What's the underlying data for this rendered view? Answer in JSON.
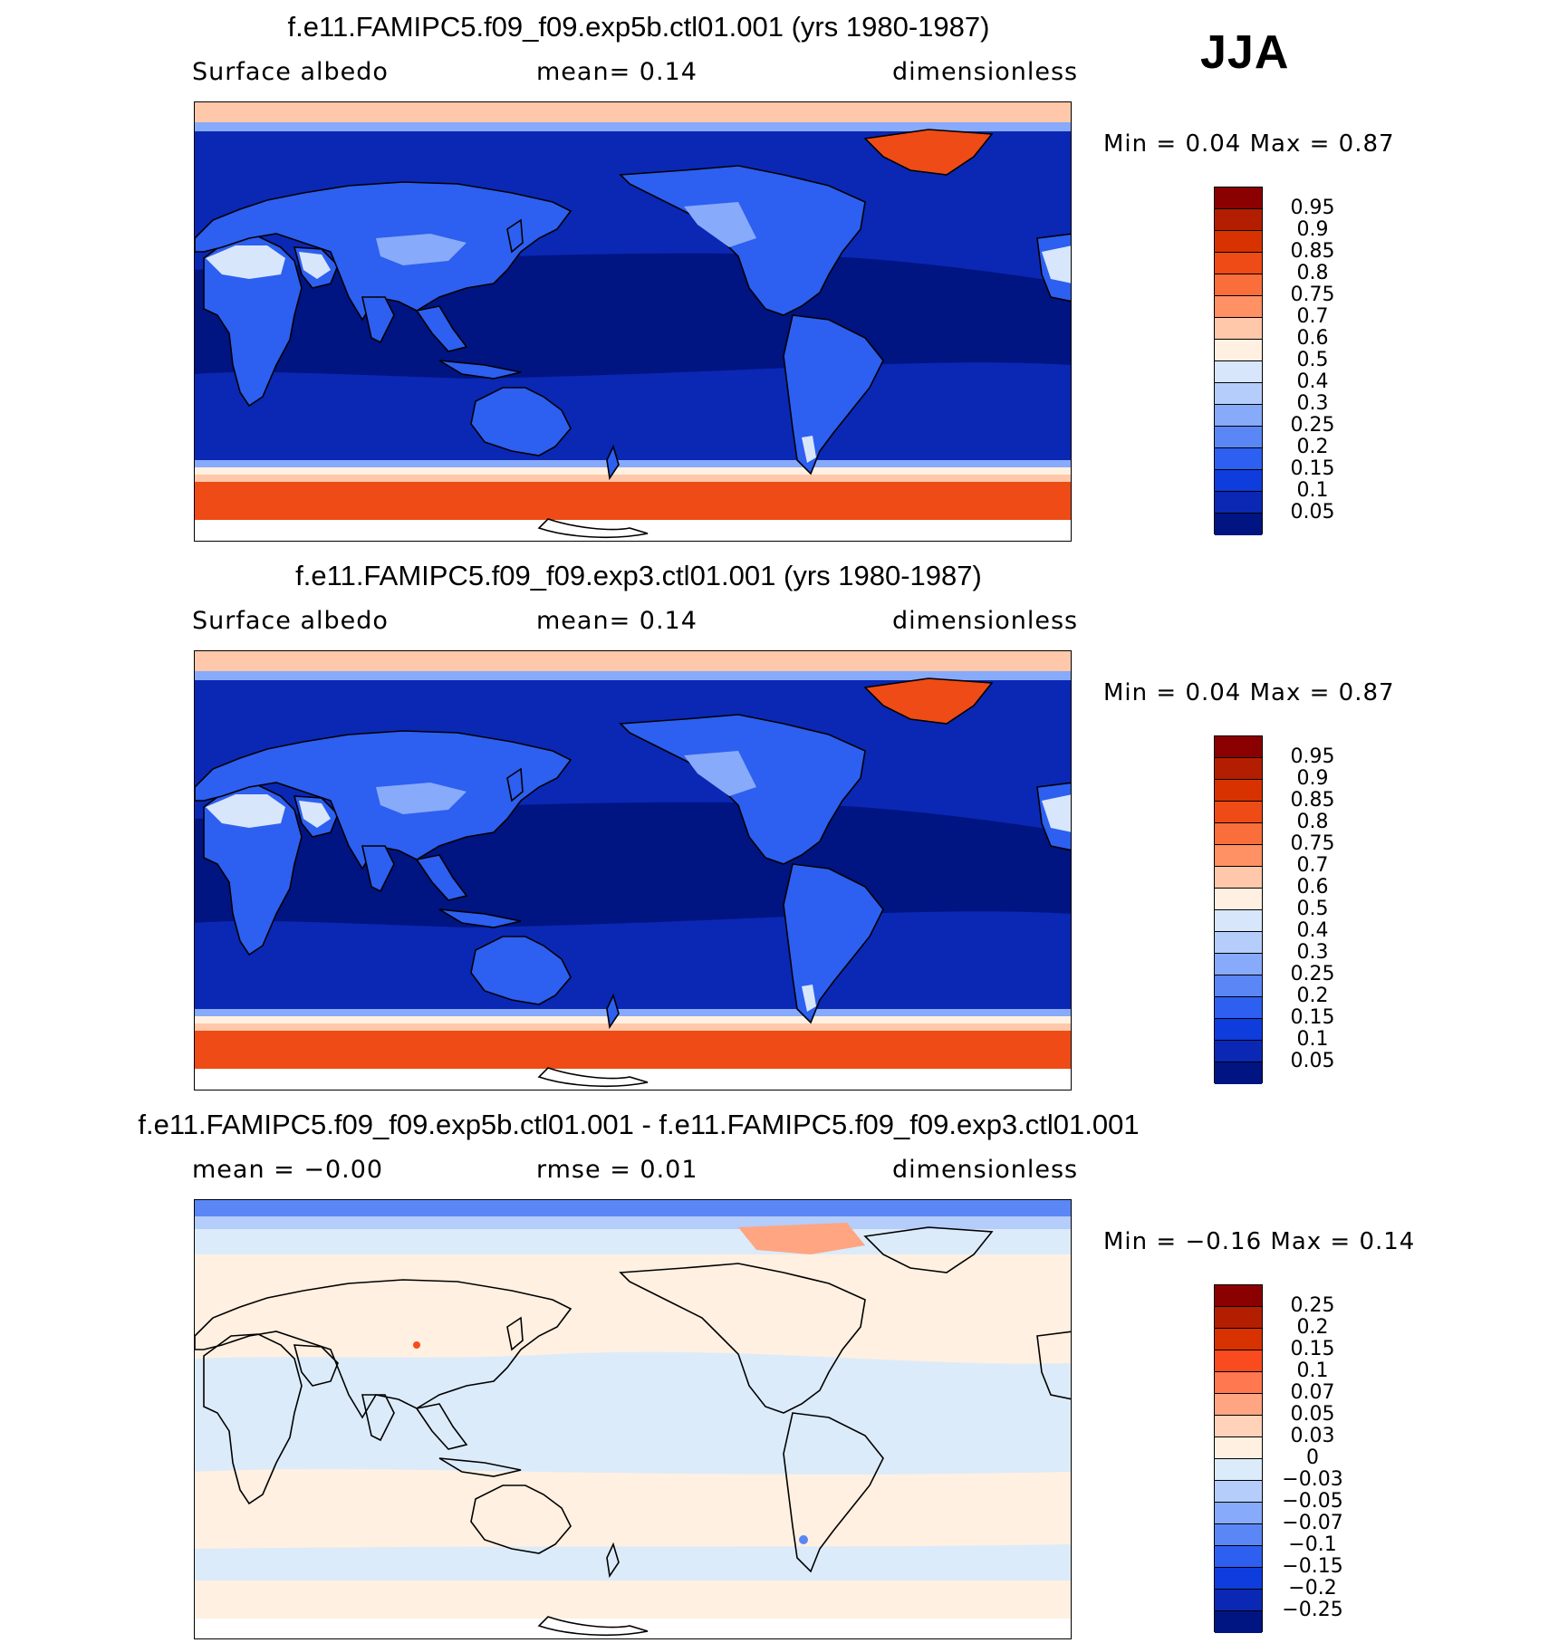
{
  "season": "JJA",
  "panels": [
    {
      "title": "f.e11.FAMIPC5.f09_f09.exp5b.ctl01.001 (yrs 1980-1987)",
      "left_label": "Surface albedo",
      "center_label": "mean=    0.14",
      "right_label": "dimensionless",
      "minmax": "Min =    0.04  Max =    0.87",
      "colorbar_labels": [
        "0.95",
        "0.9",
        "0.85",
        "0.8",
        "0.75",
        "0.7",
        "0.6",
        "0.5",
        "0.4",
        "0.3",
        "0.25",
        "0.2",
        "0.15",
        "0.1",
        "0.05"
      ],
      "colorbar_colors": [
        "#8b0000",
        "#b41e00",
        "#d73200",
        "#ee4b16",
        "#fa6e3c",
        "#ff9164",
        "#ffc8aa",
        "#fff0e1",
        "#d7e6fa",
        "#b4cdfa",
        "#87aafa",
        "#5a87f5",
        "#2d5ff0",
        "#0f3cdc",
        "#0a28b4",
        "#001482"
      ],
      "map_fill": {
        "ocean_deep": "#001482",
        "ocean_mid": "#0a28b4",
        "land": "#2d5ff0",
        "land_bright": "#87aafa",
        "desert": "#d7e6fa",
        "snow_light": "#ffc8aa",
        "ice": "#ee4b16"
      },
      "chart_data": {
        "type": "map",
        "variable": "Surface albedo",
        "units": "dimensionless",
        "mean": 0.14,
        "min": 0.04,
        "max": 0.87,
        "contour_levels": [
          0.05,
          0.1,
          0.15,
          0.2,
          0.25,
          0.3,
          0.4,
          0.5,
          0.6,
          0.7,
          0.75,
          0.8,
          0.85,
          0.9,
          0.95
        ]
      }
    },
    {
      "title": "f.e11.FAMIPC5.f09_f09.exp3.ctl01.001 (yrs 1980-1987)",
      "left_label": "Surface albedo",
      "center_label": "mean=    0.14",
      "right_label": "dimensionless",
      "minmax": "Min =    0.04  Max =    0.87",
      "colorbar_labels": [
        "0.95",
        "0.9",
        "0.85",
        "0.8",
        "0.75",
        "0.7",
        "0.6",
        "0.5",
        "0.4",
        "0.3",
        "0.25",
        "0.2",
        "0.15",
        "0.1",
        "0.05"
      ],
      "colorbar_colors": [
        "#8b0000",
        "#b41e00",
        "#d73200",
        "#ee4b16",
        "#fa6e3c",
        "#ff9164",
        "#ffc8aa",
        "#fff0e1",
        "#d7e6fa",
        "#b4cdfa",
        "#87aafa",
        "#5a87f5",
        "#2d5ff0",
        "#0f3cdc",
        "#0a28b4",
        "#001482"
      ],
      "map_fill": {
        "ocean_deep": "#001482",
        "ocean_mid": "#0a28b4",
        "land": "#2d5ff0",
        "land_bright": "#87aafa",
        "desert": "#d7e6fa",
        "snow_light": "#ffc8aa",
        "ice": "#ee4b16"
      },
      "chart_data": {
        "type": "map",
        "variable": "Surface albedo",
        "units": "dimensionless",
        "mean": 0.14,
        "min": 0.04,
        "max": 0.87,
        "contour_levels": [
          0.05,
          0.1,
          0.15,
          0.2,
          0.25,
          0.3,
          0.4,
          0.5,
          0.6,
          0.7,
          0.75,
          0.8,
          0.85,
          0.9,
          0.95
        ]
      }
    },
    {
      "title": "f.e11.FAMIPC5.f09_f09.exp5b.ctl01.001 - f.e11.FAMIPC5.f09_f09.exp3.ctl01.001",
      "left_label": "mean =   −0.00",
      "center_label": "rmse =    0.01",
      "right_label": "dimensionless",
      "minmax": "Min =   −0.16  Max =    0.14",
      "colorbar_labels": [
        "0.25",
        "0.2",
        "0.15",
        "0.1",
        "0.07",
        "0.05",
        "0.03",
        "0",
        "−0.03",
        "−0.05",
        "−0.07",
        "−0.1",
        "−0.15",
        "−0.2",
        "−0.25"
      ],
      "colorbar_colors": [
        "#8b0000",
        "#b41e00",
        "#d73200",
        "#fa4b1e",
        "#ff7850",
        "#ffa582",
        "#ffd2b9",
        "#fff0e1",
        "#dcebfa",
        "#b4cdfa",
        "#87aafa",
        "#5a87f5",
        "#2d5ff0",
        "#0f3cdc",
        "#0a28b4",
        "#001482"
      ],
      "map_fill": {
        "base_pos": "#fff0e1",
        "base_neg": "#dcebfa",
        "neg_strong": "#5a87f5",
        "pos_strong": "#ffa582"
      },
      "chart_data": {
        "type": "map",
        "variable": "Surface albedo difference",
        "units": "dimensionless",
        "mean": -0.0,
        "rmse": 0.01,
        "min": -0.16,
        "max": 0.14,
        "contour_levels": [
          -0.25,
          -0.2,
          -0.15,
          -0.1,
          -0.07,
          -0.05,
          -0.03,
          0,
          0.03,
          0.05,
          0.07,
          0.1,
          0.15,
          0.2,
          0.25
        ]
      }
    }
  ]
}
